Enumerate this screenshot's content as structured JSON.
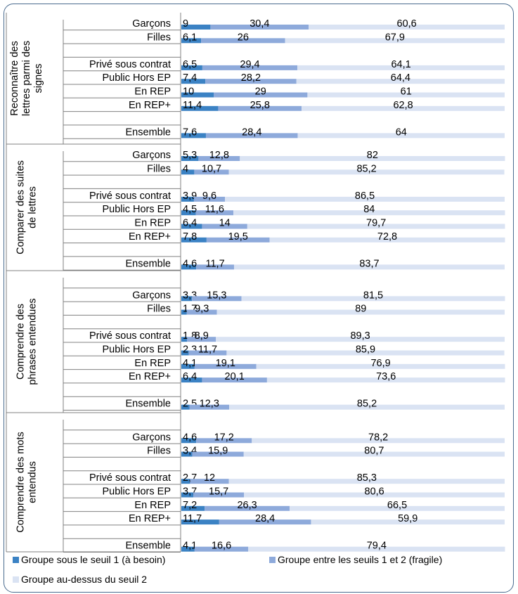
{
  "chart_data": {
    "type": "bar",
    "stacked": true,
    "orientation": "horizontal",
    "percent": true,
    "groups": [
      {
        "name": "Reconnaître des lettres parmi des signes",
        "rows": [
          {
            "label": "Garçons",
            "values": [
              9,
              30.4,
              60.6
            ]
          },
          {
            "label": "Filles",
            "values": [
              6.1,
              26,
              67.9
            ]
          },
          {
            "label": "",
            "values": null
          },
          {
            "label": "Privé sous contrat",
            "values": [
              6.5,
              29.4,
              64.1
            ]
          },
          {
            "label": "Public Hors EP",
            "values": [
              7.4,
              28.2,
              64.4
            ]
          },
          {
            "label": "En REP",
            "values": [
              10,
              29,
              61
            ]
          },
          {
            "label": "En REP+",
            "values": [
              11.4,
              25.8,
              62.8
            ]
          },
          {
            "label": "",
            "values": null
          },
          {
            "label": "Ensemble",
            "values": [
              7.6,
              28.4,
              64
            ]
          }
        ]
      },
      {
        "name": "Comparer des suites de lettres",
        "rows": [
          {
            "label": "Garçons",
            "values": [
              5.3,
              12.8,
              82
            ]
          },
          {
            "label": "Filles",
            "values": [
              4,
              10.7,
              85.2
            ]
          },
          {
            "label": "",
            "values": null
          },
          {
            "label": "Privé sous contrat",
            "values": [
              3.9,
              9.6,
              86.5
            ]
          },
          {
            "label": "Public Hors EP",
            "values": [
              4.5,
              11.6,
              84
            ]
          },
          {
            "label": "En REP",
            "values": [
              6.4,
              14,
              79.7
            ]
          },
          {
            "label": "En REP+",
            "values": [
              7.8,
              19.5,
              72.8
            ]
          },
          {
            "label": "",
            "values": null
          },
          {
            "label": "Ensemble",
            "values": [
              4.6,
              11.7,
              83.7
            ]
          }
        ]
      },
      {
        "name": "Comprendre des phrases entendues",
        "rows": [
          {
            "label": "",
            "values": null
          },
          {
            "label": "Garçons",
            "values": [
              3.3,
              15.3,
              81.5
            ]
          },
          {
            "label": "Filles",
            "values": [
              1.7,
              9.3,
              89
            ]
          },
          {
            "label": "",
            "values": null
          },
          {
            "label": "Privé sous contrat",
            "values": [
              1.8,
              8.9,
              89.3
            ]
          },
          {
            "label": "Public Hors EP",
            "values": [
              2.3,
              11.7,
              85.9
            ]
          },
          {
            "label": "En REP",
            "values": [
              4.1,
              19.1,
              76.9
            ]
          },
          {
            "label": "En REP+",
            "values": [
              6.4,
              20.1,
              73.6
            ]
          },
          {
            "label": "",
            "values": null
          },
          {
            "label": "Ensemble",
            "values": [
              2.5,
              12.3,
              85.2
            ]
          }
        ]
      },
      {
        "name": "Comprendre des mots entendus",
        "rows": [
          {
            "label": "",
            "values": null
          },
          {
            "label": "Garçons",
            "values": [
              4.6,
              17.2,
              78.2
            ]
          },
          {
            "label": "Filles",
            "values": [
              3.4,
              15.9,
              80.7
            ]
          },
          {
            "label": "",
            "values": null
          },
          {
            "label": "Privé sous contrat",
            "values": [
              2.7,
              12,
              85.3
            ]
          },
          {
            "label": "Public Hors EP",
            "values": [
              3.7,
              15.7,
              80.6
            ]
          },
          {
            "label": "En REP",
            "values": [
              7.2,
              26.3,
              66.5
            ]
          },
          {
            "label": "En REP+",
            "values": [
              11.7,
              28.4,
              59.9
            ]
          },
          {
            "label": "",
            "values": null
          },
          {
            "label": "Ensemble",
            "values": [
              4.1,
              16.6,
              79.4
            ]
          }
        ]
      }
    ],
    "series": [
      {
        "name": "Groupe sous le seuil 1 (à besoin)",
        "color": "#3b82c4"
      },
      {
        "name": "Groupe entre les seuils 1 et 2 (fragile)",
        "color": "#8eaadb"
      },
      {
        "name": "Groupe au-dessus du seuil 2",
        "color": "#dae3f3"
      }
    ],
    "legend_position": "bottom",
    "grid": false
  }
}
